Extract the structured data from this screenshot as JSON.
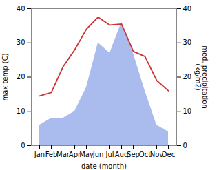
{
  "chart_data": {
    "type": "line",
    "xlabel": "date (month)",
    "ylabel": "max temp (C)",
    "y2label": "med. precipitation\n(kg/m2)",
    "categories": [
      "Jan",
      "Feb",
      "Mar",
      "Apr",
      "May",
      "Jun",
      "Jul",
      "Aug",
      "Sep",
      "Oct",
      "Nov",
      "Dec"
    ],
    "series": [
      {
        "type": "area",
        "axis": "y2",
        "color": "#aabbee",
        "values": [
          6,
          8,
          8,
          10,
          17,
          30,
          27,
          36,
          27,
          16,
          6,
          4
        ]
      },
      {
        "type": "line",
        "color": "#cc3333",
        "values": [
          14.5,
          15.5,
          23.0,
          28.0,
          34.0,
          37.5,
          35.2,
          35.5,
          27.5,
          26.0,
          19.0,
          16.0
        ]
      }
    ],
    "ylim": [
      0,
      40
    ],
    "yticks": [
      0,
      10,
      20,
      30,
      40
    ],
    "y2lim": [
      0,
      40
    ],
    "y2ticks": [
      0,
      10,
      20,
      30,
      40
    ]
  }
}
